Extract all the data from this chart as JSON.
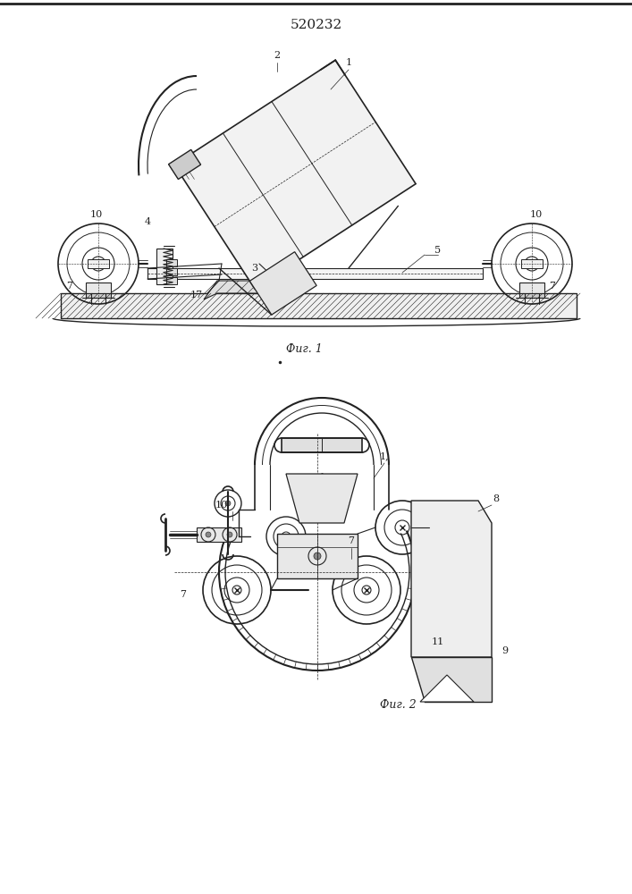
{
  "title": "520232",
  "fig1_caption": "Фиг. 1",
  "fig2_caption": "Фиг. 2",
  "bg_color": "#ffffff",
  "line_color": "#222222",
  "page_width": 7.07,
  "page_height": 10.0
}
